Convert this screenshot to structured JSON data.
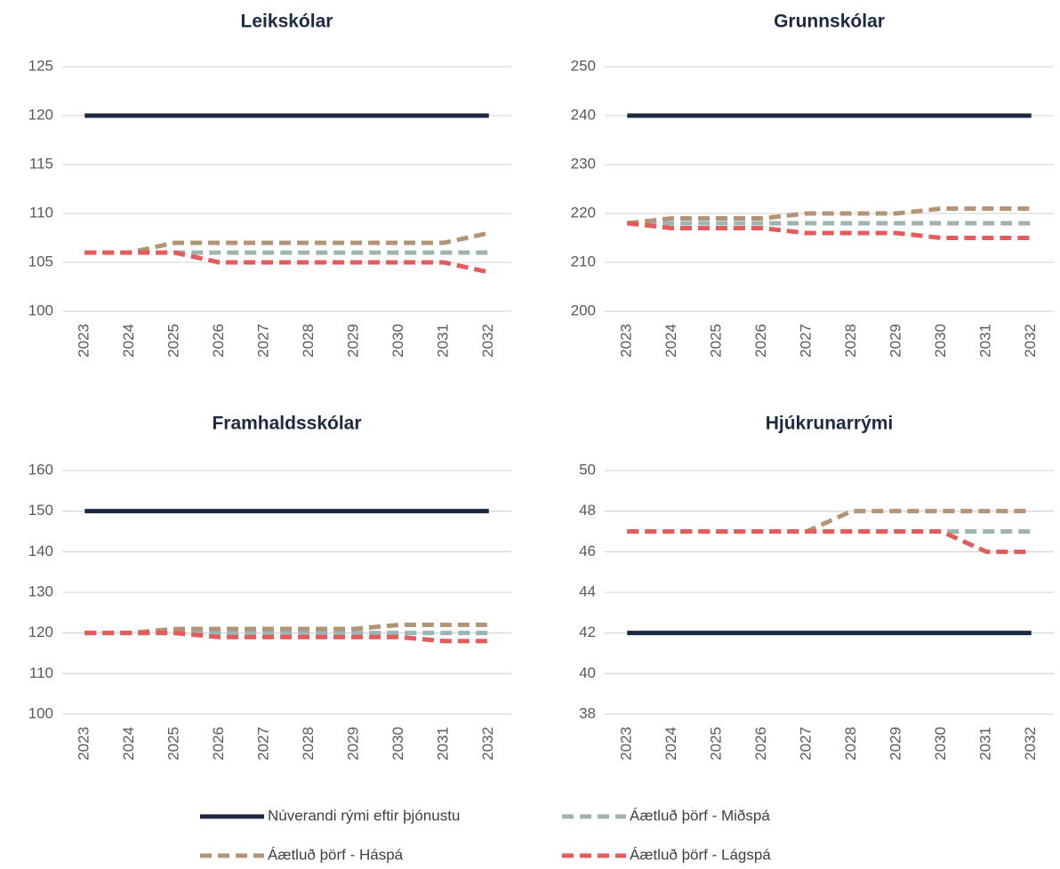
{
  "legend": [
    {
      "name": "Núverandi rými eftir þjónustu",
      "color": "#1b2a41",
      "dashed": false
    },
    {
      "name": "Áætluð þörf - Miðspá",
      "color": "#9db4b1",
      "dashed": true
    },
    {
      "name": "Áætluð þörf - Háspá",
      "color": "#b39476",
      "dashed": true
    },
    {
      "name": "Áætluð þörf - Lágspá",
      "color": "#e35b5b",
      "dashed": true
    }
  ],
  "chart_data": [
    {
      "type": "line",
      "title": "Leikskólar",
      "categories": [
        "2023",
        "2024",
        "2025",
        "2026",
        "2027",
        "2028",
        "2029",
        "2030",
        "2031",
        "2032"
      ],
      "ylim": [
        100,
        125
      ],
      "yticks": [
        100,
        105,
        110,
        115,
        120,
        125
      ],
      "grid": true,
      "series": [
        {
          "values": [
            120,
            120,
            120,
            120,
            120,
            120,
            120,
            120,
            120,
            120
          ]
        },
        {
          "values": [
            106,
            106,
            106,
            106,
            106,
            106,
            106,
            106,
            106,
            106
          ]
        },
        {
          "values": [
            106,
            106,
            107,
            107,
            107,
            107,
            107,
            107,
            107,
            108
          ]
        },
        {
          "values": [
            106,
            106,
            106,
            105,
            105,
            105,
            105,
            105,
            105,
            104
          ]
        }
      ]
    },
    {
      "type": "line",
      "title": "Grunnskólar",
      "categories": [
        "2023",
        "2024",
        "2025",
        "2026",
        "2027",
        "2028",
        "2029",
        "2030",
        "2031",
        "2032"
      ],
      "ylim": [
        200,
        250
      ],
      "yticks": [
        200,
        210,
        220,
        230,
        240,
        250
      ],
      "grid": true,
      "series": [
        {
          "values": [
            240,
            240,
            240,
            240,
            240,
            240,
            240,
            240,
            240,
            240
          ]
        },
        {
          "values": [
            218,
            218,
            218,
            218,
            218,
            218,
            218,
            218,
            218,
            218
          ]
        },
        {
          "values": [
            218,
            219,
            219,
            219,
            220,
            220,
            220,
            221,
            221,
            221
          ]
        },
        {
          "values": [
            218,
            217,
            217,
            217,
            216,
            216,
            216,
            215,
            215,
            215
          ]
        }
      ]
    },
    {
      "type": "line",
      "title": "Framhaldsskólar",
      "categories": [
        "2023",
        "2024",
        "2025",
        "2026",
        "2027",
        "2028",
        "2029",
        "2030",
        "2031",
        "2032"
      ],
      "ylim": [
        100,
        160
      ],
      "yticks": [
        100,
        110,
        120,
        130,
        140,
        150,
        160
      ],
      "grid": true,
      "series": [
        {
          "values": [
            150,
            150,
            150,
            150,
            150,
            150,
            150,
            150,
            150,
            150
          ]
        },
        {
          "values": [
            120,
            120,
            120,
            120,
            120,
            120,
            120,
            120,
            120,
            120
          ]
        },
        {
          "values": [
            120,
            120,
            121,
            121,
            121,
            121,
            121,
            122,
            122,
            122
          ]
        },
        {
          "values": [
            120,
            120,
            120,
            119,
            119,
            119,
            119,
            119,
            118,
            118
          ]
        }
      ]
    },
    {
      "type": "line",
      "title": "Hjúkrunarrými",
      "categories": [
        "2023",
        "2024",
        "2025",
        "2026",
        "2027",
        "2028",
        "2029",
        "2030",
        "2031",
        "2032"
      ],
      "ylim": [
        38,
        50
      ],
      "yticks": [
        38,
        40,
        42,
        44,
        46,
        48,
        50
      ],
      "grid": true,
      "series": [
        {
          "values": [
            42,
            42,
            42,
            42,
            42,
            42,
            42,
            42,
            42,
            42
          ]
        },
        {
          "values": [
            47,
            47,
            47,
            47,
            47,
            47,
            47,
            47,
            47,
            47
          ]
        },
        {
          "values": [
            47,
            47,
            47,
            47,
            47,
            48,
            48,
            48,
            48,
            48
          ]
        },
        {
          "values": [
            47,
            47,
            47,
            47,
            47,
            47,
            47,
            47,
            46,
            46
          ]
        }
      ]
    }
  ]
}
